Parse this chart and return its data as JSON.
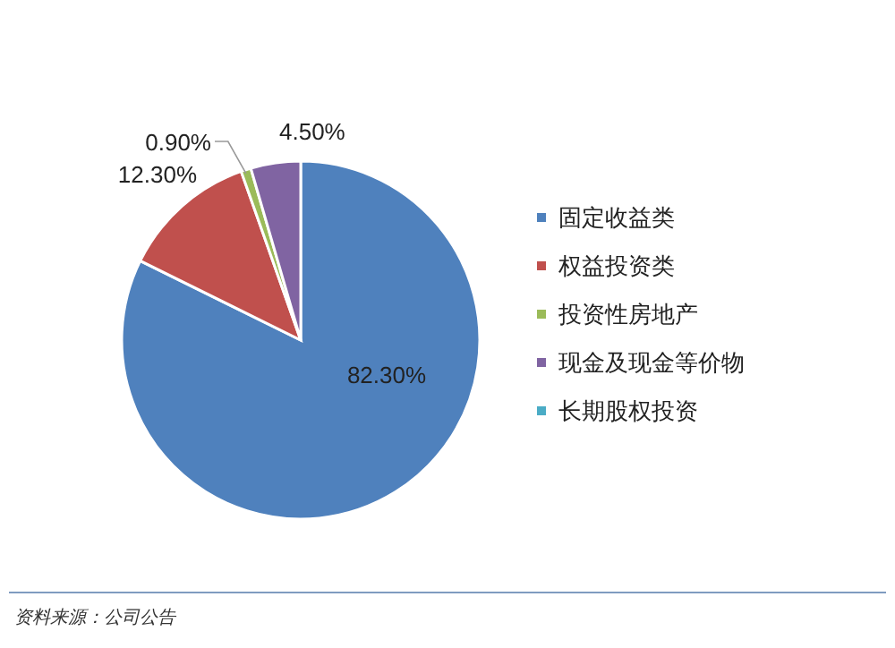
{
  "chart_data": {
    "type": "pie",
    "categories": [
      "固定收益类",
      "权益投资类",
      "投资性房地产",
      "现金及现金等价物",
      "长期股权投资"
    ],
    "values": [
      82.3,
      12.3,
      0.9,
      4.5,
      0
    ],
    "colors": [
      "#4f81bd",
      "#c0504d",
      "#9bbb59",
      "#8064a2",
      "#4bacc6"
    ],
    "value_labels": [
      "82.30%",
      "12.30%",
      "0.90%",
      "4.50%",
      null
    ],
    "legend": "right",
    "annotations": [
      "资料来源：公司公告"
    ]
  }
}
